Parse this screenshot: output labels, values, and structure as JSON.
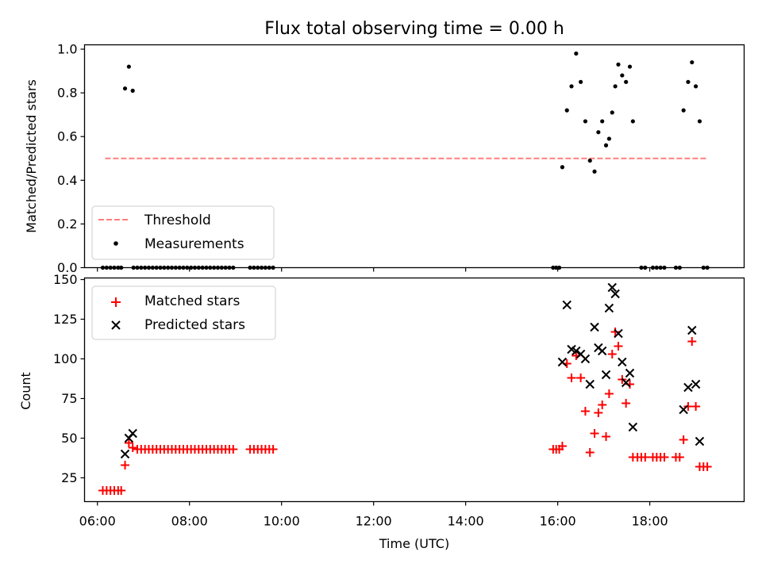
{
  "chart_data": {
    "type": "scatter",
    "title": "Flux total observing time = 0.00 h",
    "xlabel": "Time (UTC)",
    "xticks": [
      "06:00",
      "08:00",
      "10:00",
      "12:00",
      "14:00",
      "16:00",
      "18:00"
    ],
    "xlim_hours": [
      5.72,
      20.05
    ],
    "panels": [
      {
        "name": "ratio",
        "ylabel": "Matched/Predicted stars",
        "ylim": [
          0,
          1.02
        ],
        "yticks": [
          "0.0",
          "0.2",
          "0.4",
          "0.6",
          "0.8",
          "1.0"
        ],
        "legend": {
          "placement": "lower-left",
          "entries": [
            "Threshold",
            "Measurements"
          ]
        },
        "threshold": {
          "name": "Threshold",
          "value": 0.5,
          "x_start": "06:10",
          "x_end": "19:15",
          "color": "#ff7f7f",
          "style": "dashed"
        },
        "series": [
          {
            "name": "Measurements",
            "marker": "dot",
            "color": "#000000",
            "points": [
              [
                "06:07",
                0
              ],
              [
                "06:12",
                0
              ],
              [
                "06:17",
                0
              ],
              [
                "06:22",
                0
              ],
              [
                "06:27",
                0
              ],
              [
                "06:31",
                0
              ],
              [
                "06:36",
                0.82
              ],
              [
                "06:41",
                0.92
              ],
              [
                "06:46",
                0.81
              ],
              [
                "06:47",
                0
              ],
              [
                "06:52",
                0
              ],
              [
                "06:57",
                0
              ],
              [
                "07:02",
                0
              ],
              [
                "07:07",
                0
              ],
              [
                "07:12",
                0
              ],
              [
                "07:17",
                0
              ],
              [
                "07:22",
                0
              ],
              [
                "07:27",
                0
              ],
              [
                "07:32",
                0
              ],
              [
                "07:37",
                0
              ],
              [
                "07:42",
                0
              ],
              [
                "07:47",
                0
              ],
              [
                "07:52",
                0
              ],
              [
                "07:57",
                0
              ],
              [
                "08:02",
                0
              ],
              [
                "08:07",
                0
              ],
              [
                "08:12",
                0
              ],
              [
                "08:17",
                0
              ],
              [
                "08:22",
                0
              ],
              [
                "08:27",
                0
              ],
              [
                "08:32",
                0
              ],
              [
                "08:37",
                0
              ],
              [
                "08:42",
                0
              ],
              [
                "08:47",
                0
              ],
              [
                "08:52",
                0
              ],
              [
                "08:57",
                0
              ],
              [
                "09:19",
                0
              ],
              [
                "09:24",
                0
              ],
              [
                "09:29",
                0
              ],
              [
                "09:34",
                0
              ],
              [
                "09:39",
                0
              ],
              [
                "09:44",
                0
              ],
              [
                "09:49",
                0
              ],
              [
                "15:54",
                0
              ],
              [
                "15:58",
                0
              ],
              [
                "16:02",
                0
              ],
              [
                "16:06",
                0.46
              ],
              [
                "16:12",
                0.72
              ],
              [
                "16:18",
                0.83
              ],
              [
                "16:24",
                0.98
              ],
              [
                "16:30",
                0.85
              ],
              [
                "16:36",
                0.67
              ],
              [
                "16:42",
                0.49
              ],
              [
                "16:48",
                0.44
              ],
              [
                "16:53",
                0.62
              ],
              [
                "16:58",
                0.67
              ],
              [
                "17:03",
                0.56
              ],
              [
                "17:07",
                0.59
              ],
              [
                "17:11",
                0.71
              ],
              [
                "17:15",
                0.83
              ],
              [
                "17:19",
                0.93
              ],
              [
                "17:24",
                0.88
              ],
              [
                "17:29",
                0.85
              ],
              [
                "17:34",
                0.92
              ],
              [
                "17:38",
                0.67
              ],
              [
                "17:49",
                0
              ],
              [
                "17:54",
                0
              ],
              [
                "18:04",
                0
              ],
              [
                "18:09",
                0
              ],
              [
                "18:14",
                0
              ],
              [
                "18:19",
                0
              ],
              [
                "18:34",
                0
              ],
              [
                "18:39",
                0
              ],
              [
                "18:44",
                0.72
              ],
              [
                "18:50",
                0.85
              ],
              [
                "18:55",
                0.94
              ],
              [
                "19:00",
                0.83
              ],
              [
                "19:05",
                0.67
              ],
              [
                "19:10",
                0
              ],
              [
                "19:15",
                0
              ]
            ]
          }
        ]
      },
      {
        "name": "counts",
        "ylabel": "Count",
        "ylim": [
          10,
          151
        ],
        "yticks": [
          "25",
          "50",
          "75",
          "100",
          "125",
          "150"
        ],
        "legend": {
          "placement": "upper-left",
          "entries": [
            "Matched stars",
            "Predicted stars"
          ]
        },
        "series": [
          {
            "name": "Matched stars",
            "marker": "plus",
            "color": "#ff0000",
            "points": [
              [
                "06:07",
                17
              ],
              [
                "06:12",
                17
              ],
              [
                "06:17",
                17
              ],
              [
                "06:22",
                17
              ],
              [
                "06:27",
                17
              ],
              [
                "06:31",
                17
              ],
              [
                "06:36",
                33
              ],
              [
                "06:41",
                47
              ],
              [
                "06:46",
                44
              ],
              [
                "06:52",
                43
              ],
              [
                "06:57",
                43
              ],
              [
                "07:02",
                43
              ],
              [
                "07:07",
                43
              ],
              [
                "07:12",
                43
              ],
              [
                "07:17",
                43
              ],
              [
                "07:22",
                43
              ],
              [
                "07:27",
                43
              ],
              [
                "07:32",
                43
              ],
              [
                "07:37",
                43
              ],
              [
                "07:42",
                43
              ],
              [
                "07:47",
                43
              ],
              [
                "07:52",
                43
              ],
              [
                "07:57",
                43
              ],
              [
                "08:02",
                43
              ],
              [
                "08:07",
                43
              ],
              [
                "08:12",
                43
              ],
              [
                "08:17",
                43
              ],
              [
                "08:22",
                43
              ],
              [
                "08:27",
                43
              ],
              [
                "08:32",
                43
              ],
              [
                "08:37",
                43
              ],
              [
                "08:42",
                43
              ],
              [
                "08:47",
                43
              ],
              [
                "08:52",
                43
              ],
              [
                "08:57",
                43
              ],
              [
                "09:19",
                43
              ],
              [
                "09:24",
                43
              ],
              [
                "09:29",
                43
              ],
              [
                "09:34",
                43
              ],
              [
                "09:39",
                43
              ],
              [
                "09:44",
                43
              ],
              [
                "09:49",
                43
              ],
              [
                "15:54",
                43
              ],
              [
                "15:58",
                43
              ],
              [
                "16:02",
                43
              ],
              [
                "16:06",
                45
              ],
              [
                "16:12",
                97
              ],
              [
                "16:18",
                88
              ],
              [
                "16:24",
                102
              ],
              [
                "16:30",
                88
              ],
              [
                "16:36",
                67
              ],
              [
                "16:42",
                41
              ],
              [
                "16:48",
                53
              ],
              [
                "16:53",
                66
              ],
              [
                "16:58",
                71
              ],
              [
                "17:03",
                51
              ],
              [
                "17:07",
                78
              ],
              [
                "17:11",
                103
              ],
              [
                "17:15",
                117
              ],
              [
                "17:19",
                108
              ],
              [
                "17:24",
                87
              ],
              [
                "17:29",
                72
              ],
              [
                "17:34",
                84
              ],
              [
                "17:38",
                38
              ],
              [
                "17:44",
                38
              ],
              [
                "17:49",
                38
              ],
              [
                "17:54",
                38
              ],
              [
                "18:04",
                38
              ],
              [
                "18:09",
                38
              ],
              [
                "18:14",
                38
              ],
              [
                "18:19",
                38
              ],
              [
                "18:34",
                38
              ],
              [
                "18:39",
                38
              ],
              [
                "18:44",
                49
              ],
              [
                "18:50",
                70
              ],
              [
                "18:55",
                111
              ],
              [
                "19:00",
                70
              ],
              [
                "19:05",
                32
              ],
              [
                "19:10",
                32
              ],
              [
                "19:15",
                32
              ]
            ]
          },
          {
            "name": "Predicted stars",
            "marker": "x",
            "color": "#000000",
            "points": [
              [
                "06:36",
                40
              ],
              [
                "06:41",
                50
              ],
              [
                "06:46",
                53
              ],
              [
                "16:06",
                98
              ],
              [
                "16:12",
                134
              ],
              [
                "16:18",
                106
              ],
              [
                "16:24",
                105
              ],
              [
                "16:30",
                103
              ],
              [
                "16:36",
                100
              ],
              [
                "16:42",
                84
              ],
              [
                "16:48",
                120
              ],
              [
                "16:53",
                107
              ],
              [
                "16:58",
                105
              ],
              [
                "17:03",
                90
              ],
              [
                "17:07",
                132
              ],
              [
                "17:11",
                145
              ],
              [
                "17:15",
                141
              ],
              [
                "17:19",
                116
              ],
              [
                "17:24",
                98
              ],
              [
                "17:29",
                85
              ],
              [
                "17:34",
                91
              ],
              [
                "17:38",
                57
              ],
              [
                "18:44",
                68
              ],
              [
                "18:50",
                82
              ],
              [
                "18:55",
                118
              ],
              [
                "19:00",
                84
              ],
              [
                "19:05",
                48
              ]
            ]
          }
        ]
      }
    ]
  }
}
